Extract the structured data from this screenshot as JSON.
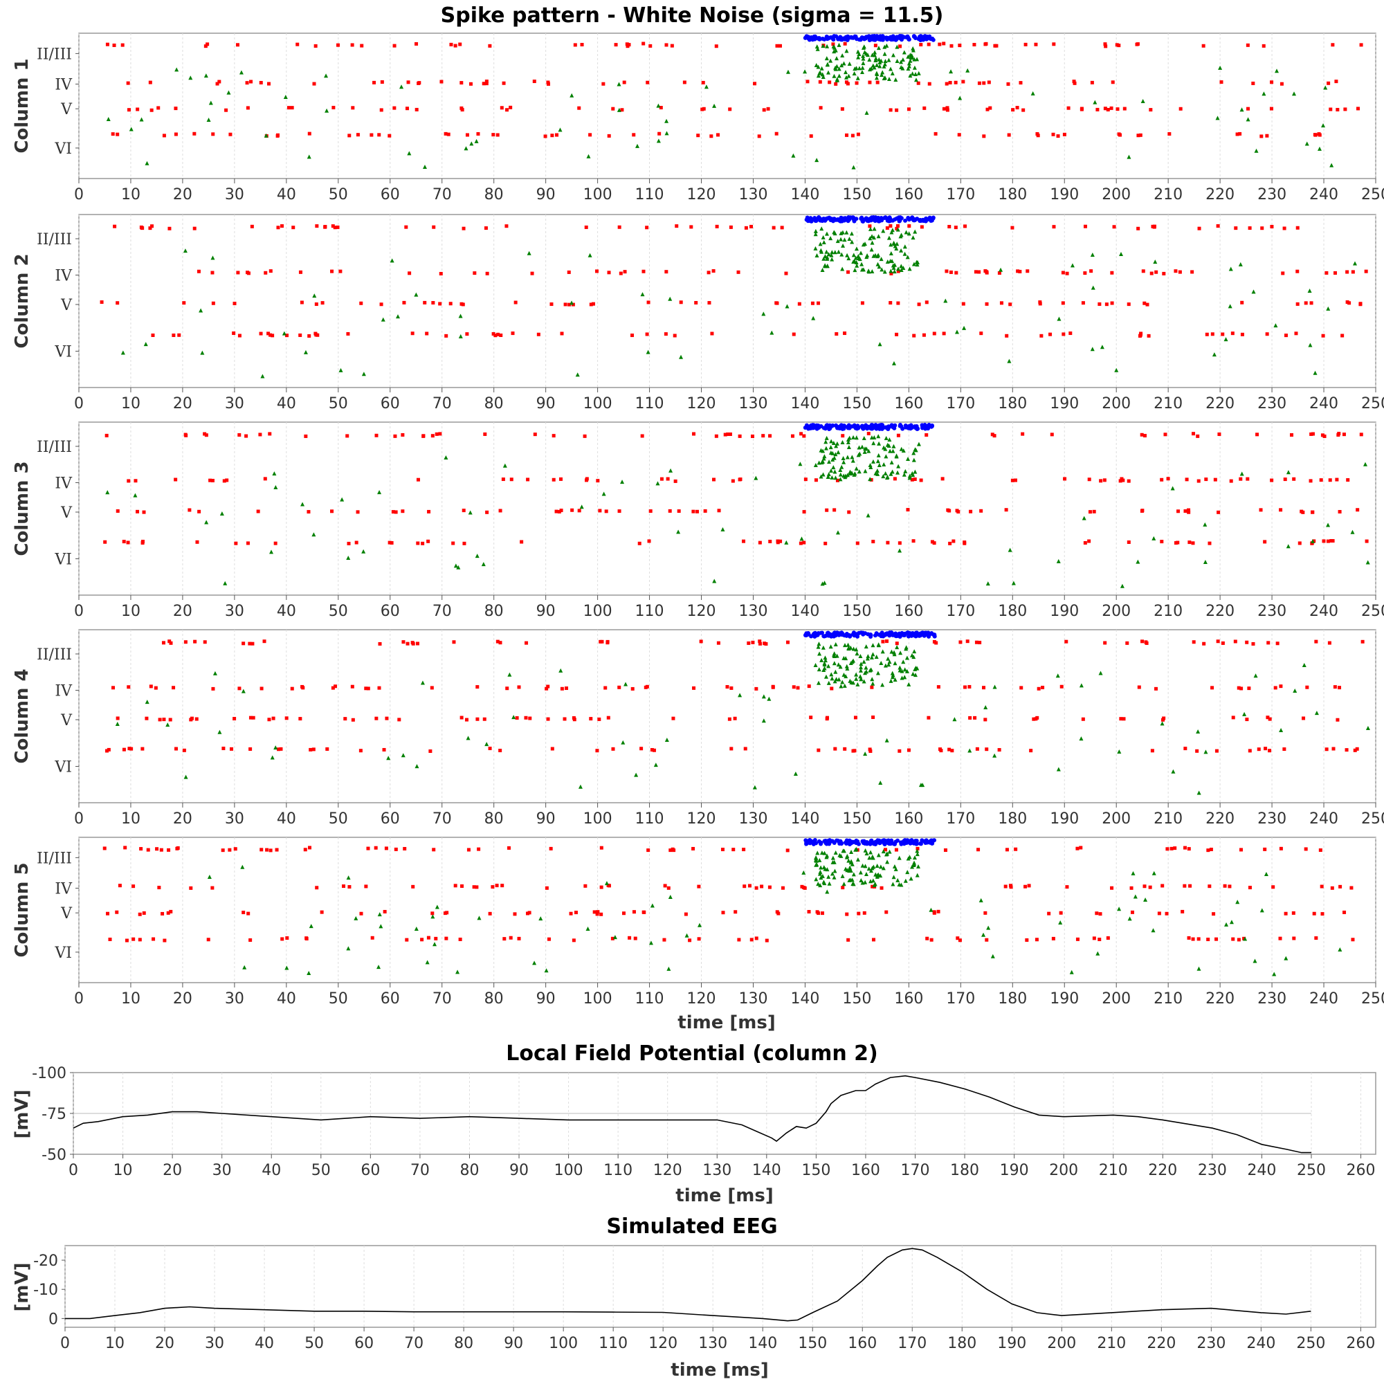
{
  "chart_data": [
    {
      "type": "scatter",
      "title": "Spike pattern - White Noise (sigma = 11.5)",
      "xlabel": "time [ms]",
      "xlim": [
        0,
        250
      ],
      "x_ticks": [
        0,
        10,
        20,
        30,
        40,
        50,
        60,
        70,
        80,
        90,
        100,
        110,
        120,
        130,
        140,
        150,
        160,
        170,
        180,
        190,
        200,
        210,
        220,
        230,
        240,
        250
      ],
      "layer_labels": [
        "II/III",
        "IV",
        "V",
        "VI"
      ],
      "colors": {
        "excitatory_red": "#ff0000",
        "inhibitory_green": "#008000",
        "blue": "#0000ff",
        "light_green": "#33ff33"
      },
      "panels": [
        {
          "ylabel": "Column 1"
        },
        {
          "ylabel": "Column 2"
        },
        {
          "ylabel": "Column 3"
        },
        {
          "ylabel": "Column 4"
        },
        {
          "ylabel": "Column 5"
        }
      ]
    },
    {
      "type": "line",
      "title": "Local Field Potential (column 2)",
      "xlabel": "time [ms]",
      "ylabel": "[mV]",
      "xlim": [
        0,
        263
      ],
      "x_ticks": [
        0,
        10,
        20,
        30,
        40,
        50,
        60,
        70,
        80,
        90,
        100,
        110,
        120,
        130,
        140,
        150,
        160,
        170,
        180,
        190,
        200,
        210,
        220,
        230,
        240,
        250,
        260
      ],
      "y_ticks": [
        "-100",
        "-75",
        "-50"
      ],
      "ylim": [
        -100,
        -50
      ],
      "reference_line": -75,
      "x": [
        0,
        2,
        5,
        10,
        15,
        20,
        25,
        30,
        40,
        50,
        60,
        70,
        80,
        90,
        100,
        110,
        120,
        130,
        135,
        138,
        141,
        142,
        144,
        146,
        148,
        150,
        152,
        153,
        155,
        158,
        160,
        162,
        165,
        168,
        170,
        175,
        180,
        185,
        190,
        195,
        200,
        210,
        215,
        220,
        230,
        235,
        240,
        245,
        248,
        250
      ],
      "y": [
        -66,
        -69,
        -70,
        -73,
        -74,
        -76,
        -76,
        -75,
        -73,
        -71,
        -73,
        -72,
        -73,
        -72,
        -71,
        -71,
        -71,
        -71,
        -68,
        -64,
        -60,
        -58,
        -63,
        -67,
        -66,
        -69,
        -76,
        -81,
        -86,
        -89,
        -89,
        -93,
        -97,
        -98,
        -97,
        -94,
        -90,
        -85,
        -79,
        -74,
        -73,
        -74,
        -73,
        -71,
        -66,
        -62,
        -56,
        -53,
        -51,
        -51
      ]
    },
    {
      "type": "line",
      "title": "Simulated EEG",
      "xlabel": "time [ms]",
      "ylabel": "[mV]",
      "xlim": [
        0,
        263
      ],
      "x_ticks": [
        0,
        10,
        20,
        30,
        40,
        50,
        60,
        70,
        80,
        90,
        100,
        110,
        120,
        130,
        140,
        150,
        160,
        170,
        180,
        190,
        200,
        210,
        220,
        230,
        240,
        250,
        260
      ],
      "y_ticks": [
        "0",
        "-10",
        "-20"
      ],
      "ylim": [
        -25,
        3
      ],
      "x": [
        0,
        5,
        10,
        15,
        20,
        25,
        30,
        40,
        50,
        60,
        70,
        80,
        90,
        100,
        110,
        120,
        130,
        140,
        145,
        147,
        150,
        155,
        160,
        163,
        165,
        168,
        170,
        172,
        175,
        180,
        185,
        190,
        195,
        200,
        210,
        220,
        230,
        240,
        245,
        250
      ],
      "y": [
        0,
        0,
        -1,
        -2,
        -3.5,
        -4,
        -3.5,
        -3,
        -2.5,
        -2.5,
        -2.3,
        -2.3,
        -2.3,
        -2.3,
        -2.2,
        -2.1,
        -1,
        0,
        0.8,
        0.5,
        -2,
        -6,
        -13,
        -18,
        -21,
        -23.5,
        -24,
        -23.5,
        -21,
        -16,
        -10,
        -5,
        -2,
        -1,
        -2,
        -3,
        -3.5,
        -2,
        -1.5,
        -2.5
      ]
    }
  ]
}
